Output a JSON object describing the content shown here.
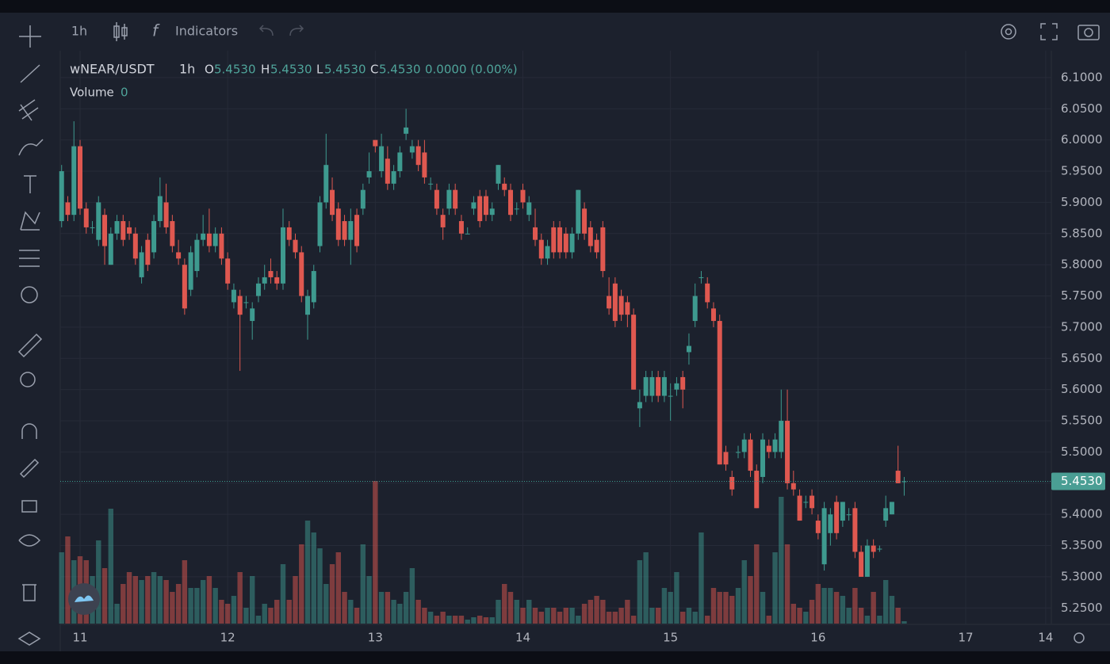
{
  "toolbar": {
    "interval": "1h",
    "indicators": "Indicators"
  },
  "chart_data": {
    "type": "candlestick",
    "symbol": "wNEAR/USDT",
    "interval": "1h",
    "ohlc_legend": {
      "open_label": "O",
      "open": "5.4530",
      "high_label": "H",
      "high": "5.4530",
      "low_label": "L",
      "low": "5.4530",
      "close_label": "C",
      "close": "5.4530",
      "change": "0.0000 (0.00%)"
    },
    "volume_label": "Volume",
    "volume_value": "0",
    "last_price": {
      "value": 5.453,
      "label": "5.4530"
    },
    "ylim": [
      5.225,
      6.138
    ],
    "yticks": [
      {
        "value": 5.25,
        "label": "5.2500"
      },
      {
        "value": 5.3,
        "label": "5.3000"
      },
      {
        "value": 5.35,
        "label": "5.3500"
      },
      {
        "value": 5.4,
        "label": "5.4000"
      },
      {
        "value": 5.45,
        "label": "5.4500"
      },
      {
        "value": 5.5,
        "label": "5.5000"
      },
      {
        "value": 5.55,
        "label": "5.5500"
      },
      {
        "value": 5.6,
        "label": "5.6000"
      },
      {
        "value": 5.65,
        "label": "5.6500"
      },
      {
        "value": 5.7,
        "label": "5.7000"
      },
      {
        "value": 5.75,
        "label": "5.7500"
      },
      {
        "value": 5.8,
        "label": "5.8000"
      },
      {
        "value": 5.85,
        "label": "5.8500"
      },
      {
        "value": 5.9,
        "label": "5.9000"
      },
      {
        "value": 5.95,
        "label": "5.9500"
      },
      {
        "value": 6.0,
        "label": "6.0000"
      },
      {
        "value": 6.05,
        "label": "6.0500"
      },
      {
        "value": 6.1,
        "label": "6.1000"
      }
    ],
    "xticks": [
      {
        "value": 3,
        "label": "11"
      },
      {
        "value": 27,
        "label": "12"
      },
      {
        "value": 51,
        "label": "13"
      },
      {
        "value": 75,
        "label": "14"
      },
      {
        "value": 99,
        "label": "15"
      },
      {
        "value": 123,
        "label": "16"
      },
      {
        "value": 147,
        "label": "17"
      },
      {
        "value": 160,
        "label": "14"
      }
    ],
    "up_color": "#3e9a8f",
    "down_color": "#df5850",
    "grid": true,
    "candles": [
      [
        5.87,
        5.96,
        5.86,
        5.95
      ],
      [
        5.9,
        5.91,
        5.87,
        5.88
      ],
      [
        5.88,
        6.03,
        5.87,
        5.99
      ],
      [
        5.99,
        6.0,
        5.88,
        5.89
      ],
      [
        5.89,
        5.9,
        5.85,
        5.86
      ],
      [
        5.86,
        5.87,
        5.85,
        5.86
      ],
      [
        5.84,
        5.91,
        5.83,
        5.9
      ],
      [
        5.88,
        5.89,
        5.8,
        5.83
      ],
      [
        5.8,
        5.86,
        5.8,
        5.85
      ],
      [
        5.85,
        5.88,
        5.84,
        5.87
      ],
      [
        5.87,
        5.88,
        5.83,
        5.84
      ],
      [
        5.86,
        5.87,
        5.84,
        5.85
      ],
      [
        5.85,
        5.86,
        5.8,
        5.81
      ],
      [
        5.78,
        5.83,
        5.77,
        5.82
      ],
      [
        5.84,
        5.85,
        5.79,
        5.8
      ],
      [
        5.82,
        5.88,
        5.81,
        5.87
      ],
      [
        5.87,
        5.94,
        5.86,
        5.91
      ],
      [
        5.9,
        5.93,
        5.85,
        5.86
      ],
      [
        5.87,
        5.88,
        5.82,
        5.83
      ],
      [
        5.82,
        5.84,
        5.8,
        5.81
      ],
      [
        5.8,
        5.81,
        5.72,
        5.73
      ],
      [
        5.76,
        5.83,
        5.75,
        5.82
      ],
      [
        5.79,
        5.85,
        5.78,
        5.84
      ],
      [
        5.84,
        5.88,
        5.83,
        5.85
      ],
      [
        5.85,
        5.89,
        5.82,
        5.83
      ],
      [
        5.83,
        5.86,
        5.82,
        5.85
      ],
      [
        5.85,
        5.86,
        5.8,
        5.81
      ],
      [
        5.81,
        5.82,
        5.76,
        5.77
      ],
      [
        5.74,
        5.77,
        5.73,
        5.76
      ],
      [
        5.75,
        5.76,
        5.63,
        5.72
      ],
      [
        5.74,
        5.75,
        5.73,
        5.74
      ],
      [
        5.71,
        5.74,
        5.68,
        5.73
      ],
      [
        5.75,
        5.78,
        5.74,
        5.77
      ],
      [
        5.77,
        5.8,
        5.76,
        5.78
      ],
      [
        5.79,
        5.81,
        5.77,
        5.78
      ],
      [
        5.78,
        5.79,
        5.76,
        5.77
      ],
      [
        5.77,
        5.89,
        5.76,
        5.86
      ],
      [
        5.86,
        5.87,
        5.83,
        5.84
      ],
      [
        5.84,
        5.85,
        5.81,
        5.82
      ],
      [
        5.82,
        5.83,
        5.74,
        5.75
      ],
      [
        5.72,
        5.76,
        5.68,
        5.75
      ],
      [
        5.74,
        5.8,
        5.73,
        5.79
      ],
      [
        5.83,
        5.91,
        5.82,
        5.9
      ],
      [
        5.9,
        6.01,
        5.89,
        5.96
      ],
      [
        5.92,
        5.94,
        5.87,
        5.88
      ],
      [
        5.89,
        5.9,
        5.83,
        5.84
      ],
      [
        5.87,
        5.88,
        5.83,
        5.84
      ],
      [
        5.84,
        5.89,
        5.8,
        5.87
      ],
      [
        5.88,
        5.89,
        5.82,
        5.83
      ],
      [
        5.89,
        5.93,
        5.88,
        5.92
      ],
      [
        5.94,
        5.98,
        5.93,
        5.95
      ],
      [
        6.0,
        6.0,
        5.98,
        5.99
      ],
      [
        5.95,
        6.01,
        5.94,
        5.99
      ],
      [
        5.97,
        5.99,
        5.92,
        5.93
      ],
      [
        5.93,
        5.96,
        5.92,
        5.95
      ],
      [
        5.95,
        5.99,
        5.94,
        5.98
      ],
      [
        6.01,
        6.05,
        6.0,
        6.02
      ],
      [
        5.98,
        6.0,
        5.97,
        5.99
      ],
      [
        5.99,
        6.0,
        5.95,
        5.96
      ],
      [
        5.98,
        6.0,
        5.93,
        5.94
      ],
      [
        5.93,
        5.94,
        5.92,
        5.93
      ],
      [
        5.92,
        5.93,
        5.88,
        5.89
      ],
      [
        5.88,
        5.89,
        5.84,
        5.86
      ],
      [
        5.89,
        5.93,
        5.88,
        5.92
      ],
      [
        5.92,
        5.93,
        5.88,
        5.89
      ],
      [
        5.87,
        5.88,
        5.84,
        5.85
      ],
      [
        5.85,
        5.86,
        5.85,
        5.85
      ],
      [
        5.89,
        5.91,
        5.88,
        5.9
      ],
      [
        5.91,
        5.92,
        5.86,
        5.87
      ],
      [
        5.91,
        5.92,
        5.87,
        5.88
      ],
      [
        5.88,
        5.9,
        5.87,
        5.89
      ],
      [
        5.93,
        5.96,
        5.92,
        5.96
      ],
      [
        5.93,
        5.94,
        5.91,
        5.92
      ],
      [
        5.92,
        5.93,
        5.87,
        5.88
      ],
      [
        5.89,
        5.9,
        5.88,
        5.89
      ],
      [
        5.92,
        5.93,
        5.89,
        5.9
      ],
      [
        5.88,
        5.91,
        5.87,
        5.9
      ],
      [
        5.86,
        5.89,
        5.83,
        5.84
      ],
      [
        5.84,
        5.85,
        5.8,
        5.81
      ],
      [
        5.81,
        5.84,
        5.8,
        5.83
      ],
      [
        5.86,
        5.87,
        5.81,
        5.82
      ],
      [
        5.86,
        5.87,
        5.81,
        5.82
      ],
      [
        5.85,
        5.86,
        5.81,
        5.82
      ],
      [
        5.82,
        5.86,
        5.81,
        5.85
      ],
      [
        5.85,
        5.92,
        5.84,
        5.92
      ],
      [
        5.89,
        5.9,
        5.84,
        5.85
      ],
      [
        5.86,
        5.87,
        5.82,
        5.83
      ],
      [
        5.84,
        5.85,
        5.81,
        5.82
      ],
      [
        5.86,
        5.87,
        5.78,
        5.79
      ],
      [
        5.75,
        5.78,
        5.72,
        5.73
      ],
      [
        5.77,
        5.78,
        5.7,
        5.71
      ],
      [
        5.75,
        5.76,
        5.71,
        5.72
      ],
      [
        5.74,
        5.75,
        5.7,
        5.72
      ],
      [
        5.72,
        5.73,
        5.6,
        5.6
      ],
      [
        5.57,
        5.6,
        5.54,
        5.58
      ],
      [
        5.59,
        5.63,
        5.58,
        5.62
      ],
      [
        5.59,
        5.63,
        5.58,
        5.62
      ],
      [
        5.62,
        5.63,
        5.58,
        5.59
      ],
      [
        5.59,
        5.63,
        5.58,
        5.62
      ],
      [
        5.59,
        5.61,
        5.55,
        5.59
      ],
      [
        5.6,
        5.62,
        5.59,
        5.61
      ],
      [
        5.62,
        5.63,
        5.57,
        5.6
      ],
      [
        5.66,
        5.69,
        5.64,
        5.67
      ],
      [
        5.71,
        5.77,
        5.7,
        5.75
      ],
      [
        5.78,
        5.79,
        5.77,
        5.78
      ],
      [
        5.77,
        5.78,
        5.73,
        5.74
      ],
      [
        5.73,
        5.74,
        5.7,
        5.71
      ],
      [
        5.71,
        5.72,
        5.48,
        5.48
      ],
      [
        5.5,
        5.51,
        5.47,
        5.48
      ],
      [
        5.46,
        5.47,
        5.43,
        5.44
      ],
      [
        5.5,
        5.51,
        5.49,
        5.5
      ],
      [
        5.5,
        5.53,
        5.49,
        5.52
      ],
      [
        5.52,
        5.53,
        5.46,
        5.47
      ],
      [
        5.47,
        5.48,
        5.41,
        5.41
      ],
      [
        5.46,
        5.53,
        5.45,
        5.52
      ],
      [
        5.51,
        5.52,
        5.49,
        5.5
      ],
      [
        5.5,
        5.53,
        5.49,
        5.52
      ],
      [
        5.5,
        5.6,
        5.49,
        5.55
      ],
      [
        5.55,
        5.6,
        5.44,
        5.45
      ],
      [
        5.45,
        5.47,
        5.43,
        5.44
      ],
      [
        5.43,
        5.44,
        5.39,
        5.39
      ],
      [
        5.42,
        5.43,
        5.41,
        5.42
      ],
      [
        5.43,
        5.44,
        5.4,
        5.41
      ],
      [
        5.39,
        5.4,
        5.36,
        5.37
      ],
      [
        5.32,
        5.42,
        5.31,
        5.41
      ],
      [
        5.37,
        5.41,
        5.35,
        5.4
      ],
      [
        5.42,
        5.43,
        5.36,
        5.37
      ],
      [
        5.39,
        5.42,
        5.38,
        5.42
      ],
      [
        5.4,
        5.41,
        5.39,
        5.4
      ],
      [
        5.41,
        5.42,
        5.33,
        5.34
      ],
      [
        5.34,
        5.35,
        5.3,
        5.3
      ],
      [
        5.3,
        5.36,
        5.3,
        5.35
      ],
      [
        5.35,
        5.36,
        5.33,
        5.34
      ],
      [
        5.345,
        5.35,
        5.34,
        5.345
      ],
      [
        5.39,
        5.43,
        5.38,
        5.41
      ],
      [
        5.4,
        5.42,
        5.4,
        5.42
      ],
      [
        5.47,
        5.51,
        5.45,
        5.45
      ],
      [
        5.453,
        5.46,
        5.43,
        5.453
      ]
    ],
    "volume": [
      90,
      110,
      80,
      85,
      80,
      60,
      105,
      70,
      145,
      25,
      50,
      65,
      60,
      55,
      60,
      65,
      60,
      55,
      40,
      50,
      80,
      45,
      45,
      55,
      60,
      45,
      30,
      25,
      35,
      65,
      20,
      60,
      10,
      25,
      20,
      30,
      75,
      30,
      60,
      100,
      130,
      115,
      95,
      50,
      75,
      90,
      40,
      30,
      20,
      100,
      60,
      180,
      40,
      40,
      30,
      25,
      40,
      70,
      30,
      20,
      15,
      10,
      15,
      10,
      10,
      10,
      5,
      8,
      10,
      8,
      8,
      30,
      50,
      40,
      30,
      20,
      30,
      20,
      15,
      20,
      20,
      15,
      20,
      20,
      10,
      25,
      30,
      35,
      30,
      15,
      15,
      20,
      30,
      10,
      80,
      90,
      20,
      20,
      45,
      40,
      65,
      15,
      20,
      15,
      115,
      10,
      45,
      40,
      40,
      35,
      45,
      80,
      60,
      100,
      40,
      10,
      90,
      160,
      100,
      25,
      20,
      15,
      30,
      50,
      45,
      45,
      40,
      35,
      20,
      45,
      20,
      10,
      40,
      10,
      55,
      35,
      20,
      3
    ]
  }
}
